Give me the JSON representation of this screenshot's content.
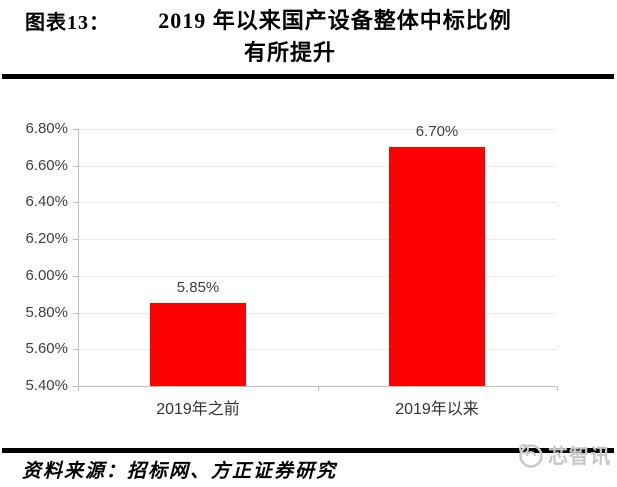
{
  "header": {
    "figure_label": "图表13：",
    "title_line1": "2019 年以来国产设备整体中标比例",
    "title_line2": "有所提升"
  },
  "chart_data": {
    "type": "bar",
    "title": "2019年以来国产设备整体中标比例有所提升",
    "categories": [
      "2019年之前",
      "2019年以来"
    ],
    "values": [
      5.85,
      6.7
    ],
    "data_labels": [
      "5.85%",
      "6.70%"
    ],
    "y_ticks": [
      {
        "label": "6.80%",
        "value": 6.8
      },
      {
        "label": "6.60%",
        "value": 6.6
      },
      {
        "label": "6.40%",
        "value": 6.4
      },
      {
        "label": "6.20%",
        "value": 6.2
      },
      {
        "label": "6.00%",
        "value": 6.0
      },
      {
        "label": "5.80%",
        "value": 5.8
      },
      {
        "label": "5.60%",
        "value": 5.6
      },
      {
        "label": "5.40%",
        "value": 5.4
      }
    ],
    "ylim": [
      5.4,
      6.8
    ],
    "y_step": 0.2,
    "xlabel": "",
    "ylabel": "",
    "legend": null,
    "grid": true,
    "bar_color": "#FF0000",
    "grid_color": "#ECECEC",
    "axis_color": "#BFBFBF",
    "label_color": "#3F3F3F"
  },
  "footer": {
    "source_text": "资料来源：招标网、方正证券研究",
    "watermark_text": "芯智讯"
  }
}
